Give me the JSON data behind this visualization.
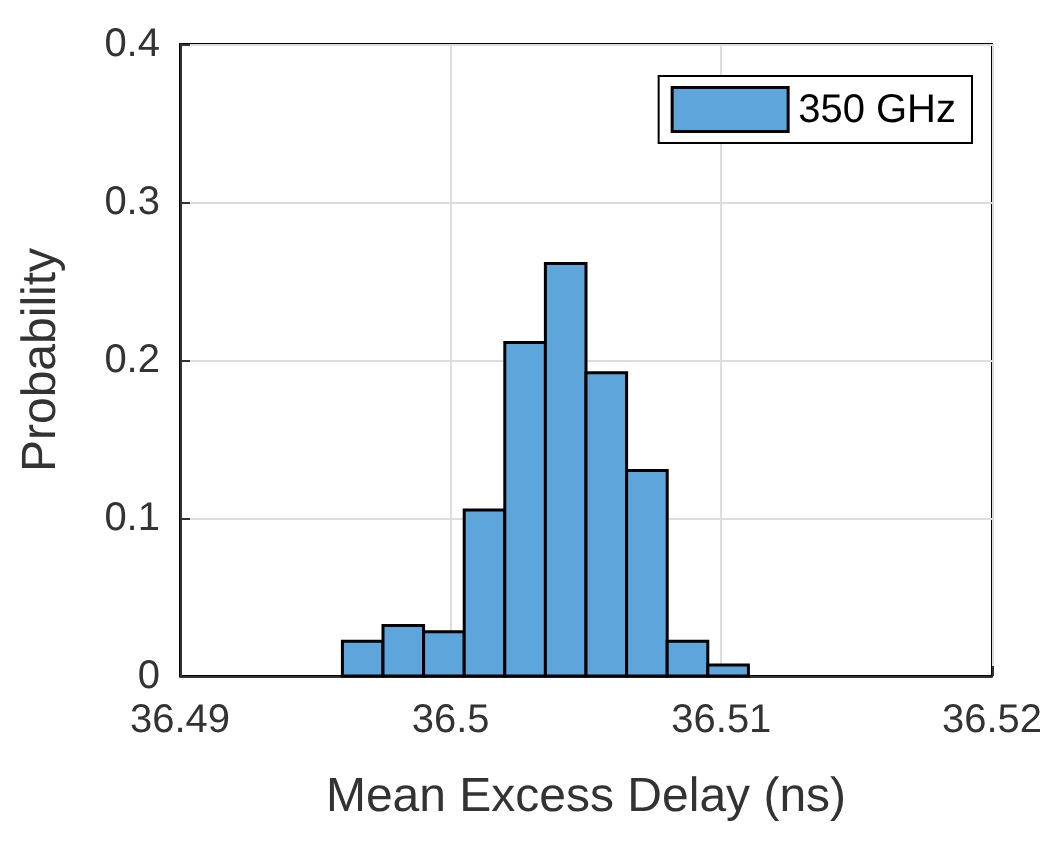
{
  "chart_data": {
    "type": "histogram",
    "xlabel": "Mean Excess Delay (ns)",
    "ylabel": "Probability",
    "bins": [
      36.496,
      36.4975,
      36.499,
      36.5005,
      36.502,
      36.5035,
      36.505,
      36.5065,
      36.508,
      36.5095,
      36.511
    ],
    "series": [
      {
        "name": "350 GHz",
        "color": "#5da5da",
        "values": [
          0.022,
          0.032,
          0.028,
          0.105,
          0.211,
          0.261,
          0.192,
          0.13,
          0.022,
          0.007
        ]
      }
    ],
    "xlim": [
      36.49,
      36.52
    ],
    "xticks": [
      36.49,
      36.5,
      36.51,
      36.52
    ],
    "ylim": [
      0,
      0.4
    ],
    "yticks": [
      0,
      0.1,
      0.2,
      0.3,
      0.4
    ],
    "grid": true,
    "legend": "top right"
  }
}
